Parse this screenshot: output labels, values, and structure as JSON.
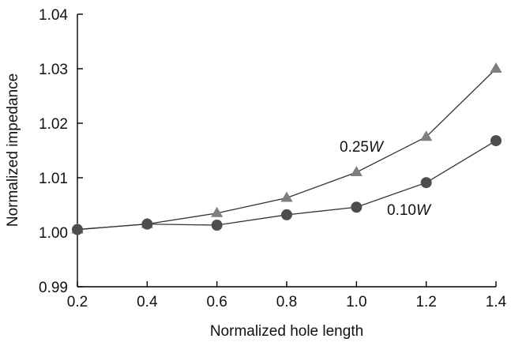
{
  "chart_data": {
    "type": "line",
    "xlabel": "Normalized hole length",
    "ylabel": "Normalized impedance",
    "x": [
      0.2,
      0.4,
      0.6,
      0.8,
      1.0,
      1.2,
      1.4
    ],
    "xticks": [
      "0.2",
      "0.4",
      "0.6",
      "0.8",
      "1.0",
      "1.2",
      "1.4"
    ],
    "yticks": [
      "0.99",
      "1.00",
      "1.01",
      "1.02",
      "1.03",
      "1.04"
    ],
    "xlim": [
      0.2,
      1.4
    ],
    "ylim": [
      0.99,
      1.04
    ],
    "grid": false,
    "series": [
      {
        "name": "0.25W",
        "name_prefix": "0.25",
        "name_italic": "W",
        "marker": "triangle",
        "color": "#7f7f7f",
        "values": [
          1.0005,
          1.0015,
          1.0035,
          1.0063,
          1.011,
          1.0175,
          1.03
        ]
      },
      {
        "name": "0.10W",
        "name_prefix": "0.10",
        "name_italic": "W",
        "marker": "circle",
        "color": "#4d4d4d",
        "values": [
          1.0005,
          1.0015,
          1.0013,
          1.0032,
          1.0046,
          1.0091,
          1.0168
        ]
      }
    ]
  }
}
